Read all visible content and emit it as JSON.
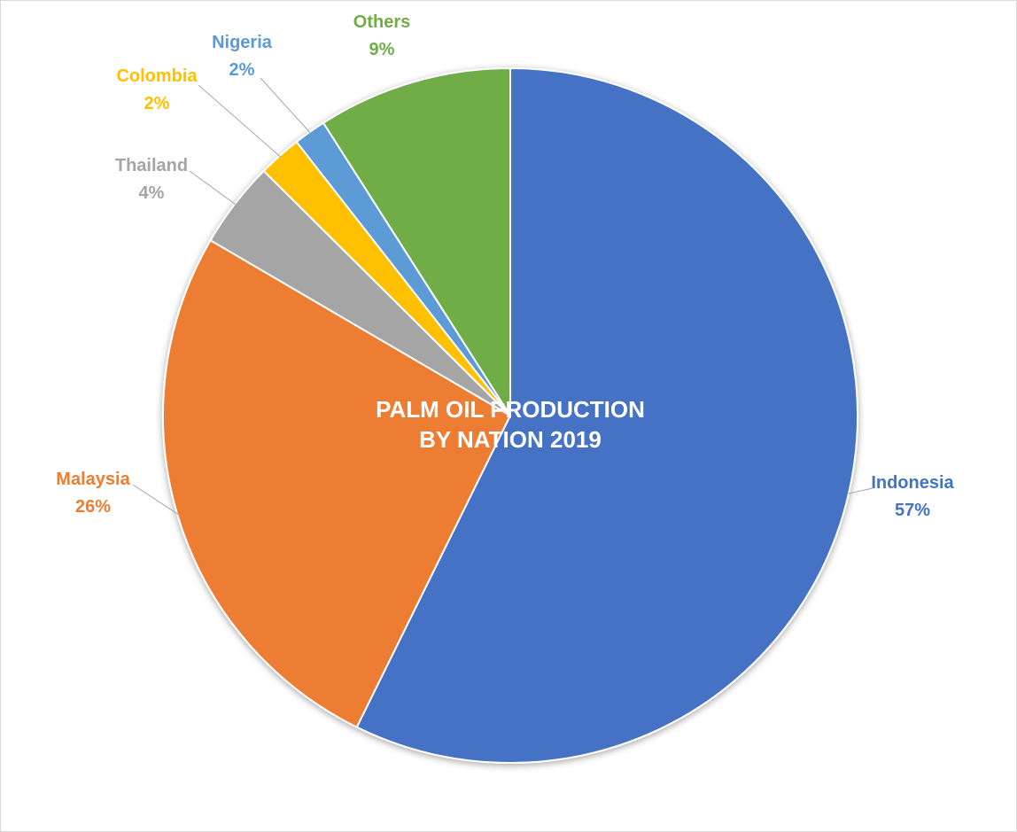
{
  "chart_data": {
    "type": "pie",
    "title_lines": [
      "PALM OIL PRODUCTION",
      "BY NATION 2019"
    ],
    "slices": [
      {
        "label": "Indonesia",
        "value": 57,
        "display": "57%",
        "color": "#4472c4"
      },
      {
        "label": "Malaysia",
        "value": 26,
        "display": "26%",
        "color": "#ed7d31"
      },
      {
        "label": "Thailand",
        "value": 4,
        "display": "4%",
        "color": "#a5a5a5"
      },
      {
        "label": "Colombia",
        "value": 2,
        "display": "2%",
        "color": "#ffc000"
      },
      {
        "label": "Nigeria",
        "value": 1.5,
        "display": "2%",
        "color": "#5b9bd5"
      },
      {
        "label": "Others",
        "value": 9,
        "display": "9%",
        "color": "#70ad47"
      }
    ],
    "start_angle": "top",
    "direction": "clockwise",
    "legend": "none",
    "data_labels": "outside-with-leader-lines"
  }
}
